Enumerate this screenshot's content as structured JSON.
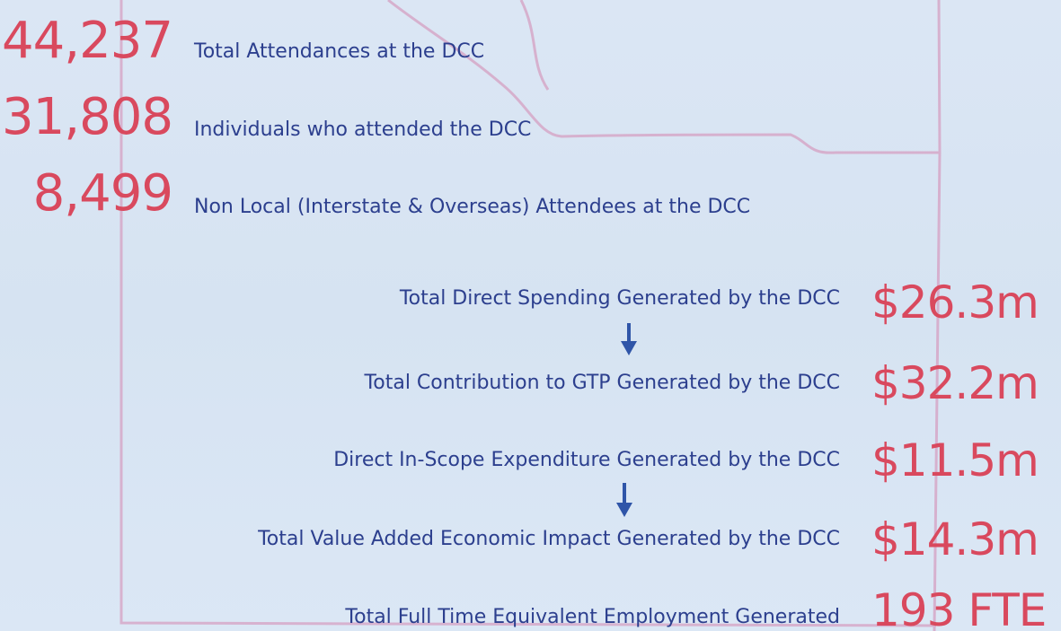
{
  "stats": [
    {
      "value": "44,237",
      "label": "Total Attendances at the DCC"
    },
    {
      "value": "31,808",
      "label": "Individuals who attended the DCC"
    },
    {
      "value": "8,499",
      "label": "Non Local (Interstate & Overseas) Attendees at the DCC"
    }
  ],
  "impacts": [
    {
      "label": "Total Direct Spending Generated by the DCC",
      "value": "$26.3m"
    },
    {
      "label": "Total Contribution to GTP Generated by the DCC",
      "value": "$32.2m"
    },
    {
      "label": "Direct In-Scope Expenditure Generated by the DCC",
      "value": "$11.5m"
    },
    {
      "label": "Total Value Added Economic Impact Generated by the DCC",
      "value": "$14.3m"
    },
    {
      "label": "Total Full Time Equivalent Employment Generated",
      "value": "193 FTE"
    }
  ]
}
